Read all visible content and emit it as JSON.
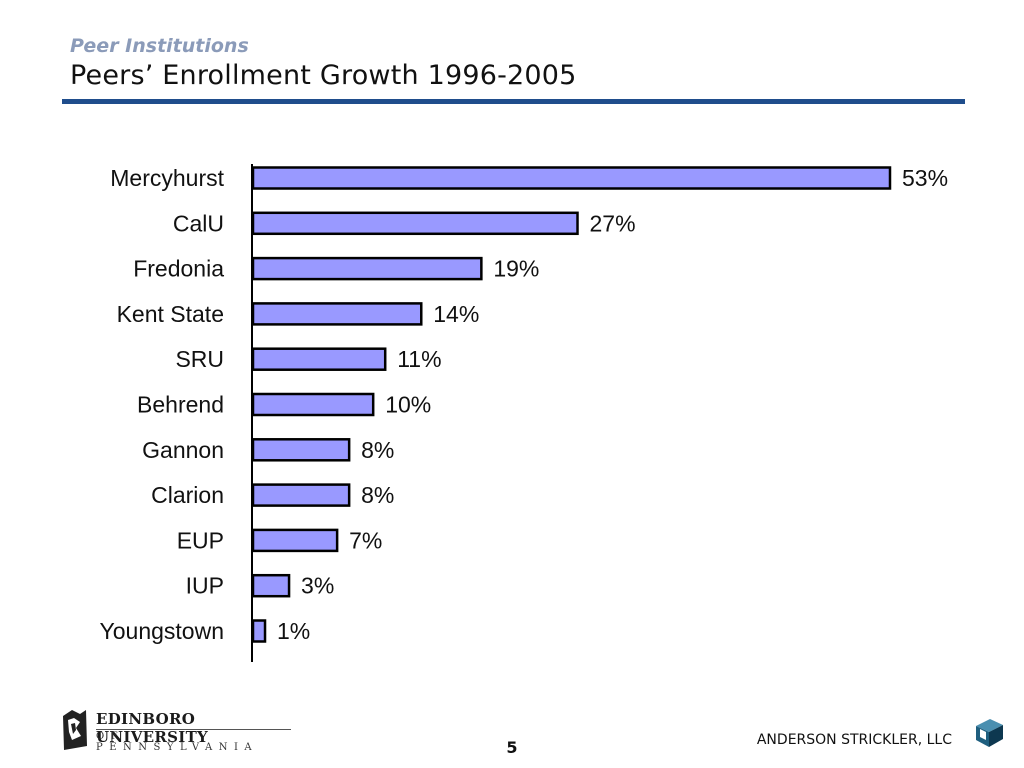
{
  "header": {
    "section_label": "Peer Institutions",
    "title": "Peers’ Enrollment Growth 1996-2005"
  },
  "chart_data": {
    "type": "bar",
    "orientation": "horizontal",
    "categories": [
      "Mercyhurst",
      "CalU",
      "Fredonia",
      "Kent State",
      "SRU",
      "Behrend",
      "Gannon",
      "Clarion",
      "EUP",
      "IUP",
      "Youngstown"
    ],
    "values": [
      53,
      27,
      19,
      14,
      11,
      10,
      8,
      8,
      7,
      3,
      1
    ],
    "data_labels": [
      "53%",
      "27%",
      "19%",
      "14%",
      "11%",
      "10%",
      "8%",
      "8%",
      "7%",
      "3%",
      "1%"
    ],
    "unit": "%",
    "title": "",
    "xlabel": "",
    "ylabel": "",
    "xlim": [
      0,
      53
    ],
    "grid": false,
    "legend": "none",
    "bar_color": "#9999ff",
    "bar_outline_color": "#000000"
  },
  "footer": {
    "org_name": "EDINBORO UNIVERSITY",
    "org_sub": "OF PENNSYLVANIA",
    "page_number": "5",
    "firm_name": "ANDERSON STRICKLER, LLC",
    "org_logo_icon": "university-crest-icon",
    "firm_logo_icon": "cube-logo-icon"
  }
}
